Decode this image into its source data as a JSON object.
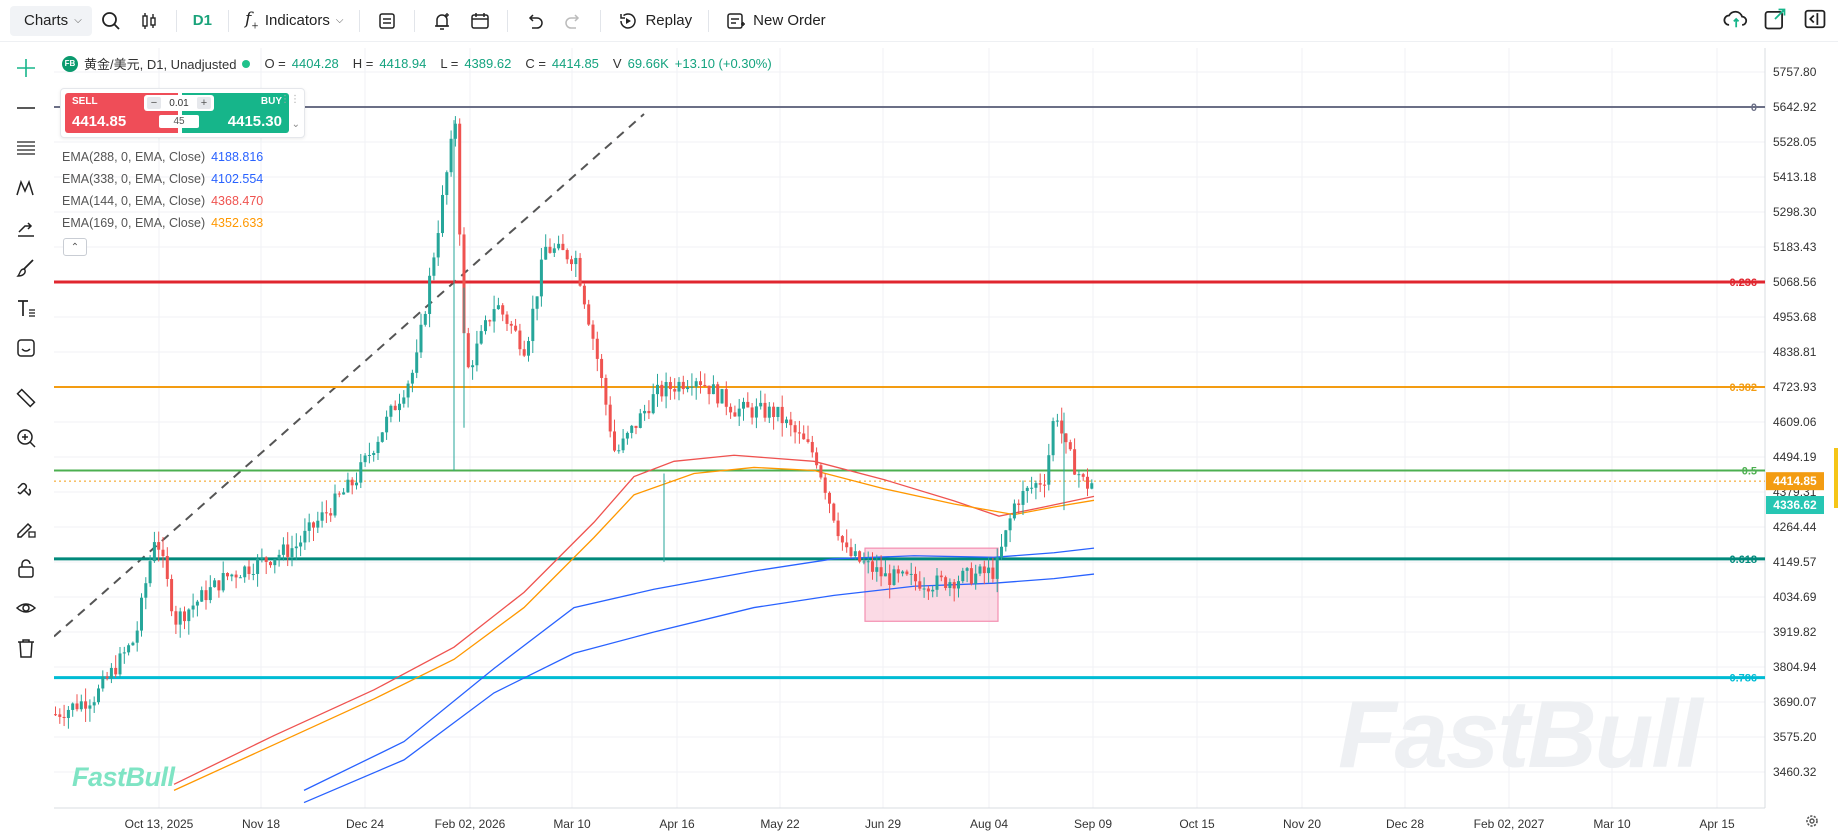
{
  "toolbar": {
    "charts_label": "Charts",
    "interval": "D1",
    "indicators_label": "Indicators",
    "replay_label": "Replay",
    "new_order_label": "New Order"
  },
  "legend": {
    "symbol_badge": "FB",
    "symbol": "黄金/美元, D1, Unadjusted",
    "o_label": "O =",
    "o_value": "4404.28",
    "h_label": "H =",
    "h_value": "4418.94",
    "l_label": "L =",
    "l_value": "4389.62",
    "c_label": "C =",
    "c_value": "4414.85",
    "v_label": "V",
    "v_value": "69.66K",
    "change": "+13.10 (+0.30%)"
  },
  "trade": {
    "sell_label": "SELL",
    "sell_price": "4414.85",
    "buy_label": "BUY",
    "buy_price": "4415.30",
    "quantity": "0.01",
    "spread": "45"
  },
  "indicators": [
    {
      "name": "EMA(288, 0, EMA, Close)",
      "value": "4188.816",
      "color": "#2962ff"
    },
    {
      "name": "EMA(338, 0, EMA, Close)",
      "value": "4102.554",
      "color": "#2962ff"
    },
    {
      "name": "EMA(144, 0, EMA, Close)",
      "value": "4368.470",
      "color": "#ef5350"
    },
    {
      "name": "EMA(169, 0, EMA, Close)",
      "value": "4352.633",
      "color": "#ff9800"
    }
  ],
  "watermark": "FastBull",
  "colors": {
    "up": "#26a69a",
    "down": "#ef5350",
    "accent": "#1aa37a"
  },
  "chart_data": {
    "type": "candlestick",
    "y_axis_ticks": [
      "5757.80",
      "5642.92",
      "5528.05",
      "5413.18",
      "5298.30",
      "5183.43",
      "5068.56",
      "4953.68",
      "4838.81",
      "4723.93",
      "4609.06",
      "4494.19",
      "4379.31",
      "4264.44",
      "4149.57",
      "4034.69",
      "3919.82",
      "3804.94",
      "3690.07",
      "3575.20",
      "3460.32"
    ],
    "ylim": [
      3390,
      5800
    ],
    "x_axis_labels": [
      "Oct 13, 2025",
      "Nov 18",
      "Dec 24",
      "Feb 02, 2026",
      "Mar 10",
      "Apr 16",
      "May 22",
      "Jun 29",
      "Aug 04",
      "Sep 09",
      "Oct 15",
      "Nov 20",
      "Dec 28",
      "Feb 02, 2027",
      "Mar 10",
      "Apr 15"
    ],
    "last_price": "4414.85",
    "marker_price": "4336.62",
    "fib_levels": [
      {
        "label": "0",
        "price": 5642.92,
        "color": "#6b6f86"
      },
      {
        "label": "0.236",
        "price": 5068.56,
        "color": "#e0262f"
      },
      {
        "label": "0.382",
        "price": 4723.93,
        "color": "#f39c12"
      },
      {
        "label": "0.5",
        "price": 4450,
        "color": "#4caf50"
      },
      {
        "label": "0.618",
        "price": 4160,
        "color": "#00897b"
      },
      {
        "label": "0.786",
        "price": 3770,
        "color": "#00bcd4"
      }
    ],
    "candles_summary": [
      {
        "date": "Oct 13, 2025",
        "close": 4050
      },
      {
        "date": "Nov 18",
        "close": 4070
      },
      {
        "date": "Dec 24",
        "close": 4480
      },
      {
        "date": "Feb 02, 2026",
        "close": 4900
      },
      {
        "date": "Mar 10",
        "close": 5150
      },
      {
        "date": "Apr 16",
        "close": 4750
      },
      {
        "date": "May 22",
        "close": 4500
      },
      {
        "date": "Jun 29",
        "close": 4100
      },
      {
        "date": "Aug 04",
        "close": 4250
      },
      {
        "date": "Sep 09",
        "close": 4414.85
      }
    ]
  }
}
